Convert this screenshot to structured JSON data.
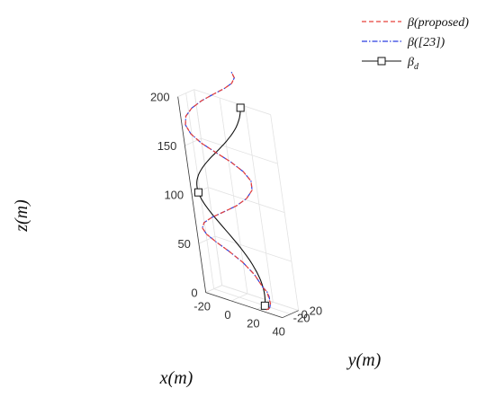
{
  "chart_data": {
    "type": "line",
    "dimensions": 3,
    "title": "",
    "xlabel": "x(m)",
    "ylabel": "y(m)",
    "zlabel": "z(m)",
    "xlim": [
      -20,
      40
    ],
    "ylim": [
      -20,
      20
    ],
    "zlim": [
      0,
      200
    ],
    "xticks": [
      "-20",
      "0",
      "20",
      "40"
    ],
    "yticks": [
      "-20",
      "0",
      "20"
    ],
    "zticks": [
      "0",
      "50",
      "100",
      "150",
      "200"
    ],
    "grid": true,
    "legend_position": "top-right",
    "series": [
      {
        "name": "β(proposed)",
        "legend_label": "β(proposed)",
        "color": "#e8403a",
        "style": "dashed",
        "x": [
          27,
          27,
          26.5,
          25.5,
          23.5,
          21.4,
          17.9,
          9.6,
          0.5,
          -8.3,
          -14.9,
          -18.3,
          -17.9,
          -14.0,
          -7.1,
          1.3,
          9.5,
          15.3,
          17.9,
          16.8,
          12.5,
          5.9,
          -1.9,
          -9.3,
          -14.9,
          -17.9,
          -17.9,
          -14.9,
          -9.3,
          -1.9,
          5.9,
          12.5,
          16.8,
          17.9
        ],
        "y": [
          -18,
          -12,
          -7,
          -2,
          2,
          5,
          7.6,
          15.4,
          17.9,
          14.4,
          6.3,
          -3.5,
          -12.4,
          -17.6,
          -17.8,
          -12.6,
          -3.6,
          6.3,
          14.4,
          17.9,
          15.4,
          8.6,
          -1.2,
          -10.6,
          -16.6,
          -17.8,
          -13.9,
          -5.9,
          3.6,
          12.1,
          17.1,
          17.6,
          13.3,
          5.3
        ],
        "z": [
          2,
          2,
          3,
          5,
          9,
          14,
          16.2,
          24.5,
          32.7,
          40.9,
          49.1,
          57.2,
          65.4,
          73.6,
          81.8,
          89.9,
          98.1,
          106.3,
          114.5,
          122.6,
          130.8,
          139,
          147.2,
          155.3,
          163.5,
          171.7,
          179.9,
          188.0,
          196.2,
          204.4,
          212.6,
          220.7,
          228.9,
          237.1
        ]
      },
      {
        "name": "β([23])",
        "legend_label": "β([23])",
        "color": "#2b3fe0",
        "style": "dash-dot",
        "x": [
          28,
          27.5,
          26.5,
          25,
          23.5,
          21.4,
          17.9,
          9.6,
          0.5,
          -8.3,
          -14.9,
          -18.3,
          -17.9,
          -14.0,
          -7.1,
          1.3,
          9.5,
          15.3,
          17.9,
          16.8,
          12.5,
          5.9,
          -1.9,
          -9.3,
          -14.9,
          -17.9,
          -17.9,
          -14.9,
          -9.3,
          -1.9,
          5.9,
          12.5,
          16.8,
          17.9
        ],
        "y": [
          -16,
          -11,
          -6,
          -1,
          3,
          5.5,
          7.6,
          15.4,
          17.9,
          14.4,
          6.3,
          -3.5,
          -12.4,
          -17.6,
          -17.8,
          -12.6,
          -3.6,
          6.3,
          14.4,
          17.9,
          15.4,
          8.6,
          -1.2,
          -10.6,
          -16.6,
          -17.8,
          -13.9,
          -5.9,
          3.6,
          12.1,
          17.1,
          17.6,
          13.3,
          5.3
        ],
        "z": [
          3,
          3,
          4,
          6,
          10,
          14,
          16.2,
          24.5,
          32.7,
          40.9,
          49.1,
          57.2,
          65.4,
          73.6,
          81.8,
          89.9,
          98.1,
          106.3,
          114.5,
          122.6,
          130.8,
          139,
          147.2,
          155.3,
          163.5,
          171.7,
          179.9,
          188.0,
          196.2,
          204.4,
          212.6,
          220.7,
          228.9,
          237.1
        ]
      },
      {
        "name": "β_d",
        "legend_label": "β",
        "legend_subscript": "d",
        "color": "#111111",
        "style": "solid",
        "marker": "square",
        "marker_indices": [
          0,
          32,
          64
        ],
        "x": [
          20,
          19.9,
          19.6,
          19.1,
          18.4,
          17.5,
          16.4,
          15.2,
          13.8,
          12.3,
          10.6,
          8.9,
          7.1,
          5.2,
          3.3,
          1.3,
          -0.6,
          -2.6,
          -4.5,
          -6.4,
          -8.2,
          -9.9,
          -11.5,
          -13.0,
          -14.4,
          -15.6,
          -16.7,
          -17.6,
          -18.3,
          -18.8,
          -19.2,
          -19.3,
          -19.3,
          -19.1,
          -18.6,
          -18.0,
          -17.2,
          -16.3,
          -15.1,
          -13.9,
          -12.5,
          -11.0,
          -9.4,
          -7.7,
          -5.9,
          -4.1,
          -2.2,
          -0.3,
          1.7,
          3.6,
          5.5,
          7.3,
          9.1,
          10.8,
          12.3,
          13.8,
          15.1,
          16.3,
          17.3,
          18.1,
          18.7,
          19.2,
          19.4,
          19.5,
          19.4
        ],
        "y": [
          0,
          1.9,
          3.7,
          5.6,
          7.3,
          9.0,
          10.5,
          11.9,
          13.2,
          14.3,
          15.2,
          16.0,
          16.5,
          16.9,
          17.0,
          17.0,
          16.7,
          16.3,
          15.6,
          14.8,
          13.8,
          12.6,
          11.3,
          9.9,
          8.3,
          6.6,
          4.9,
          3.1,
          1.2,
          -0.6,
          -2.5,
          -4.3,
          -6.0,
          -7.7,
          -9.3,
          -10.8,
          -12.2,
          -13.4,
          -14.5,
          -15.4,
          -16.1,
          -16.6,
          -17.0,
          -17.1,
          -17.1,
          -16.9,
          -16.5,
          -15.9,
          -15.1,
          -14.1,
          -13.0,
          -11.8,
          -10.4,
          -8.9,
          -7.2,
          -5.5,
          -3.8,
          -1.9,
          -0.1,
          1.8,
          3.6,
          5.4,
          7.2,
          8.8,
          10.4
        ],
        "z": [
          0,
          3.1,
          6.2,
          9.4,
          12.5,
          15.6,
          18.8,
          21.9,
          25.0,
          28.1,
          31.2,
          34.4,
          37.5,
          40.6,
          43.8,
          46.9,
          50.0,
          53.1,
          56.2,
          59.4,
          62.5,
          65.6,
          68.8,
          71.9,
          75.0,
          78.1,
          81.2,
          84.4,
          87.5,
          90.6,
          93.8,
          96.9,
          100.0,
          103.1,
          106.2,
          109.4,
          112.5,
          115.6,
          118.8,
          121.9,
          125.0,
          128.1,
          131.2,
          134.4,
          137.5,
          140.6,
          143.8,
          146.9,
          150.0,
          153.1,
          156.2,
          159.4,
          162.5,
          165.6,
          168.8,
          171.9,
          175.0,
          178.1,
          181.2,
          184.4,
          187.5,
          190.6,
          193.8,
          196.9,
          200.0
        ]
      }
    ]
  }
}
